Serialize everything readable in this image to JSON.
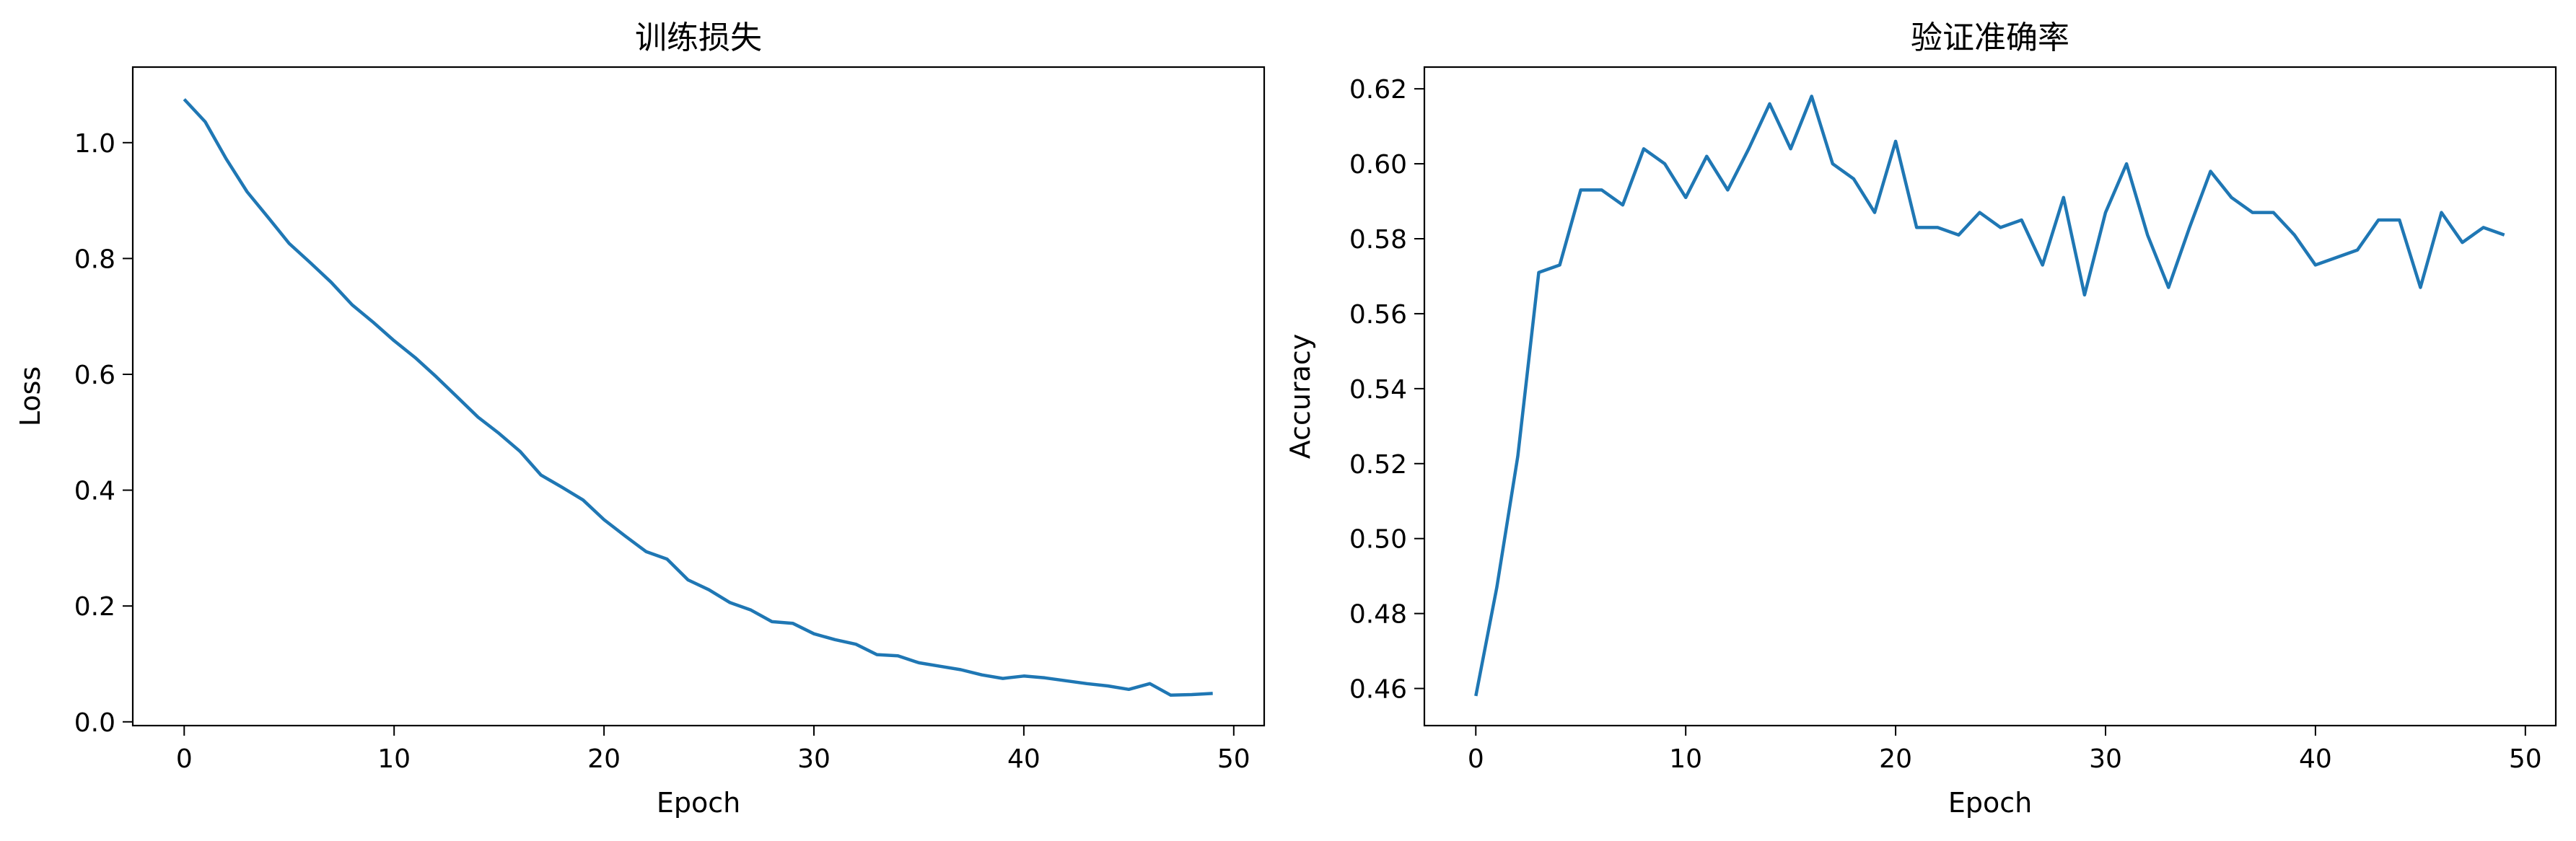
{
  "chart_data": [
    {
      "type": "line",
      "title": "训练损失",
      "xlabel": "Epoch",
      "ylabel": "Loss",
      "xlim": [
        -2.45,
        51.45
      ],
      "ylim": [
        -0.0065,
        1.1305
      ],
      "xticks": [
        0,
        10,
        20,
        30,
        40,
        50
      ],
      "yticks": [
        0.0,
        0.2,
        0.4,
        0.6,
        0.8,
        1.0
      ],
      "grid": false,
      "series": [
        {
          "color": "#1f77b4",
          "x": [
            0,
            1,
            2,
            3,
            4,
            5,
            6,
            7,
            8,
            9,
            10,
            11,
            12,
            13,
            14,
            15,
            16,
            17,
            18,
            19,
            20,
            21,
            22,
            23,
            24,
            25,
            26,
            27,
            28,
            29,
            30,
            31,
            32,
            33,
            34,
            35,
            36,
            37,
            38,
            39,
            40,
            41,
            42,
            43,
            44,
            45,
            46,
            47,
            48,
            49
          ],
          "values": [
            1.075,
            1.036,
            0.972,
            0.915,
            0.871,
            0.826,
            0.793,
            0.759,
            0.72,
            0.69,
            0.658,
            0.629,
            0.596,
            0.561,
            0.526,
            0.498,
            0.467,
            0.426,
            0.405,
            0.383,
            0.349,
            0.321,
            0.294,
            0.281,
            0.245,
            0.228,
            0.206,
            0.193,
            0.173,
            0.17,
            0.152,
            0.142,
            0.134,
            0.116,
            0.114,
            0.102,
            0.096,
            0.09,
            0.081,
            0.075,
            0.079,
            0.076,
            0.071,
            0.066,
            0.062,
            0.056,
            0.066,
            0.046,
            0.047,
            0.049
          ]
        }
      ]
    },
    {
      "type": "line",
      "title": "验证准确率",
      "xlabel": "Epoch",
      "ylabel": "Accuracy",
      "xlim": [
        -2.45,
        51.45
      ],
      "ylim": [
        0.4501,
        0.6258
      ],
      "xticks": [
        0,
        10,
        20,
        30,
        40,
        50
      ],
      "yticks": [
        0.46,
        0.48,
        0.5,
        0.52,
        0.54,
        0.56,
        0.58,
        0.6,
        0.62
      ],
      "grid": false,
      "series": [
        {
          "color": "#1f77b4",
          "x": [
            0,
            1,
            2,
            3,
            4,
            5,
            6,
            7,
            8,
            9,
            10,
            11,
            12,
            13,
            14,
            15,
            16,
            17,
            18,
            19,
            20,
            21,
            22,
            23,
            24,
            25,
            26,
            27,
            28,
            29,
            30,
            31,
            32,
            33,
            34,
            35,
            36,
            37,
            38,
            39,
            40,
            41,
            42,
            43,
            44,
            45,
            46,
            47,
            48,
            49
          ],
          "values": [
            0.458,
            0.487,
            0.522,
            0.571,
            0.573,
            0.593,
            0.593,
            0.589,
            0.604,
            0.6,
            0.591,
            0.602,
            0.593,
            0.604,
            0.616,
            0.604,
            0.618,
            0.6,
            0.596,
            0.587,
            0.606,
            0.583,
            0.583,
            0.581,
            0.587,
            0.583,
            0.585,
            0.573,
            0.591,
            0.565,
            0.587,
            0.6,
            0.581,
            0.567,
            0.583,
            0.598,
            0.591,
            0.587,
            0.587,
            0.581,
            0.573,
            0.575,
            0.577,
            0.585,
            0.585,
            0.567,
            0.587,
            0.579,
            0.583,
            0.581
          ]
        }
      ]
    }
  ]
}
